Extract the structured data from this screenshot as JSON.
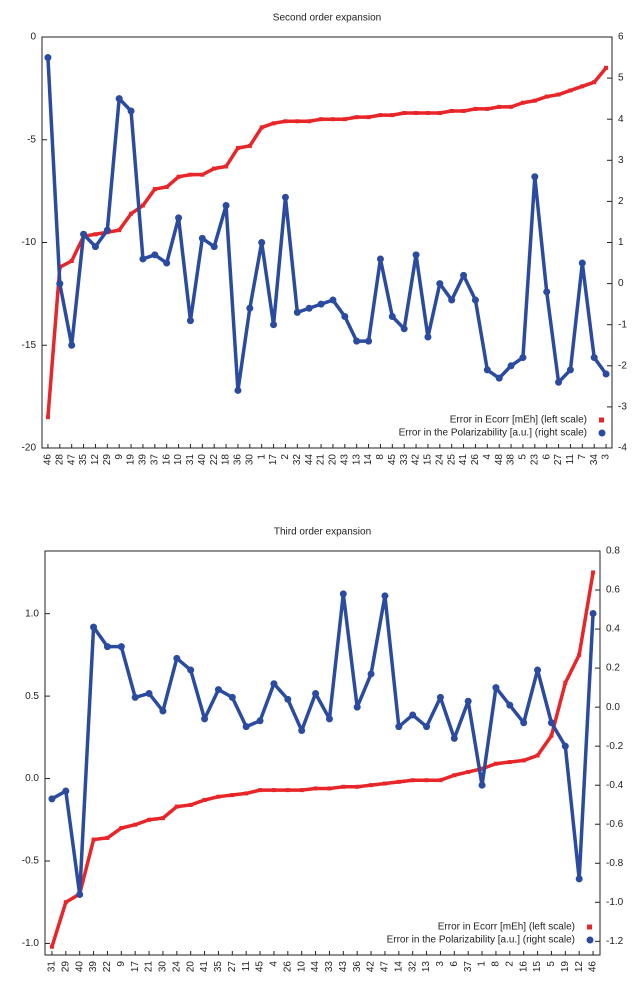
{
  "chart_data": [
    {
      "type": "line",
      "title": "Second order expansion",
      "categories": [
        "46",
        "28",
        "47",
        "35",
        "12",
        "29",
        "9",
        "19",
        "39",
        "37",
        "16",
        "10",
        "31",
        "40",
        "22",
        "18",
        "36",
        "30",
        "1",
        "17",
        "2",
        "32",
        "44",
        "21",
        "20",
        "43",
        "13",
        "14",
        "8",
        "45",
        "33",
        "42",
        "15",
        "24",
        "25",
        "41",
        "26",
        "4",
        "48",
        "38",
        "5",
        "23",
        "6",
        "27",
        "11",
        "7",
        "34",
        "3"
      ],
      "series": [
        {
          "name": "Error in Ecorr [mEh] (left scale)",
          "color": "#e8262a",
          "marker": "square",
          "values": [
            -18.5,
            -11.2,
            -10.9,
            -9.7,
            -9.6,
            -9.5,
            -9.4,
            -8.6,
            -8.2,
            -7.4,
            -7.3,
            -6.8,
            -6.7,
            -6.7,
            -6.4,
            -6.3,
            -5.4,
            -5.3,
            -4.4,
            -4.2,
            -4.1,
            -4.1,
            -4.1,
            -4.0,
            -4.0,
            -4.0,
            -3.9,
            -3.9,
            -3.8,
            -3.8,
            -3.7,
            -3.7,
            -3.7,
            -3.7,
            -3.6,
            -3.6,
            -3.5,
            -3.5,
            -3.4,
            -3.4,
            -3.2,
            -3.1,
            -2.9,
            -2.8,
            -2.6,
            -2.4,
            -2.2,
            -1.5
          ]
        },
        {
          "name": "Error in the Polarizability [a.u.] (right scale)",
          "color": "#2b4ba0",
          "marker": "circle",
          "axis": "y2",
          "values": [
            5.5,
            0.0,
            -1.5,
            1.2,
            0.9,
            1.3,
            4.5,
            4.2,
            0.6,
            0.7,
            0.5,
            1.6,
            -0.9,
            1.1,
            0.9,
            1.9,
            -2.6,
            -0.6,
            1.0,
            -1.0,
            2.1,
            -0.7,
            -0.6,
            -0.5,
            -0.4,
            -0.8,
            -1.4,
            -1.4,
            0.6,
            -0.8,
            -1.1,
            0.7,
            -1.3,
            0.0,
            -0.4,
            0.2,
            -0.4,
            -2.1,
            -2.3,
            -2.0,
            -1.8,
            2.6,
            -0.2,
            -2.4,
            -2.1,
            0.5,
            -1.8,
            -2.2
          ]
        }
      ],
      "ylim": [
        -20,
        0
      ],
      "yticks": [
        -20,
        -15,
        -10,
        -5,
        0
      ],
      "y2lim": [
        -4,
        6
      ],
      "y2ticks": [
        -4,
        -3,
        -2,
        -1,
        0,
        1,
        2,
        3,
        4,
        5,
        6
      ],
      "legend": "lower right"
    },
    {
      "type": "line",
      "title": "Third order expansion",
      "categories": [
        "31",
        "29",
        "40",
        "39",
        "22",
        "9",
        "17",
        "21",
        "30",
        "24",
        "20",
        "41",
        "35",
        "27",
        "11",
        "45",
        "4",
        "26",
        "10",
        "44",
        "33",
        "43",
        "36",
        "42",
        "47",
        "14",
        "32",
        "13",
        "3",
        "6",
        "37",
        "1",
        "8",
        "2",
        "16",
        "15",
        "5",
        "19",
        "12",
        "46"
      ],
      "series": [
        {
          "name": "Error in Ecorr [mEh] (left scale)",
          "color": "#e8262a",
          "marker": "square",
          "values": [
            -1.02,
            -0.75,
            -0.7,
            -0.37,
            -0.36,
            -0.3,
            -0.28,
            -0.25,
            -0.24,
            -0.17,
            -0.16,
            -0.13,
            -0.11,
            -0.1,
            -0.09,
            -0.07,
            -0.07,
            -0.07,
            -0.07,
            -0.06,
            -0.06,
            -0.05,
            -0.05,
            -0.04,
            -0.03,
            -0.02,
            -0.01,
            -0.01,
            -0.01,
            0.02,
            0.04,
            0.06,
            0.09,
            0.1,
            0.11,
            0.14,
            0.26,
            0.58,
            0.75,
            1.25
          ]
        },
        {
          "name": "Error in the Polarizability [a.u.] (right scale)",
          "color": "#2b4ba0",
          "marker": "circle",
          "axis": "y2",
          "values": [
            -0.47,
            -0.43,
            -0.96,
            0.41,
            0.31,
            0.31,
            0.05,
            0.07,
            -0.02,
            0.25,
            0.19,
            -0.06,
            0.09,
            0.05,
            -0.1,
            -0.07,
            0.12,
            0.04,
            -0.12,
            0.07,
            -0.06,
            0.58,
            0.0,
            0.17,
            0.57,
            -0.1,
            -0.04,
            -0.1,
            0.05,
            -0.16,
            0.03,
            -0.4,
            0.1,
            0.01,
            -0.08,
            0.19,
            -0.08,
            -0.2,
            -0.88,
            0.48
          ]
        }
      ],
      "ylim": [
        -1.07,
        1.38
      ],
      "yticks": [
        {
          "value": -1.0,
          "label": "-1.0"
        },
        -0.5,
        {
          "value": 0,
          "label": "0.0"
        },
        0.5,
        {
          "value": 1.0,
          "label": "1.0"
        }
      ],
      "y2lim": [
        -1.27,
        0.8
      ],
      "y2ticks": [
        -1.2,
        {
          "value": -1.0,
          "label": "-1.0"
        },
        -0.8,
        -0.6,
        -0.4,
        -0.2,
        {
          "value": 0,
          "label": "0.0"
        },
        0.2,
        0.4,
        0.6,
        0.8
      ],
      "legend": "lower right"
    }
  ]
}
